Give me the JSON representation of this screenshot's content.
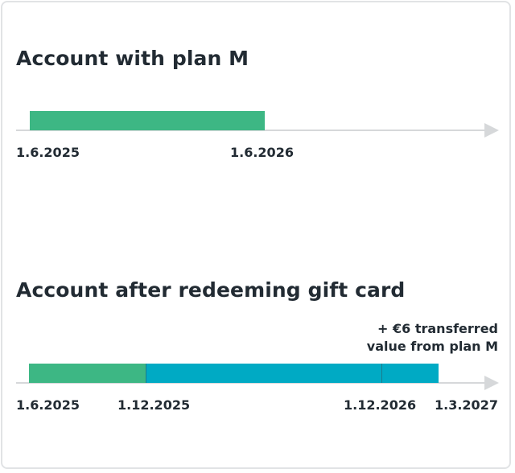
{
  "colors": {
    "plan_m": "#3db784",
    "gift_card": "#00aac4",
    "axis": "#d6d8da",
    "text": "#222b33"
  },
  "section1": {
    "title": "Account with plan M",
    "dates": [
      "1.6.2025",
      "1.6.2026"
    ]
  },
  "section2": {
    "title": "Account after redeeming gift card",
    "dates": [
      "1.6.2025",
      "1.12.2025",
      "1.12.2026",
      "1.3.2027"
    ],
    "note_line1": "+ €6 transferred",
    "note_line2": "value from plan M"
  }
}
